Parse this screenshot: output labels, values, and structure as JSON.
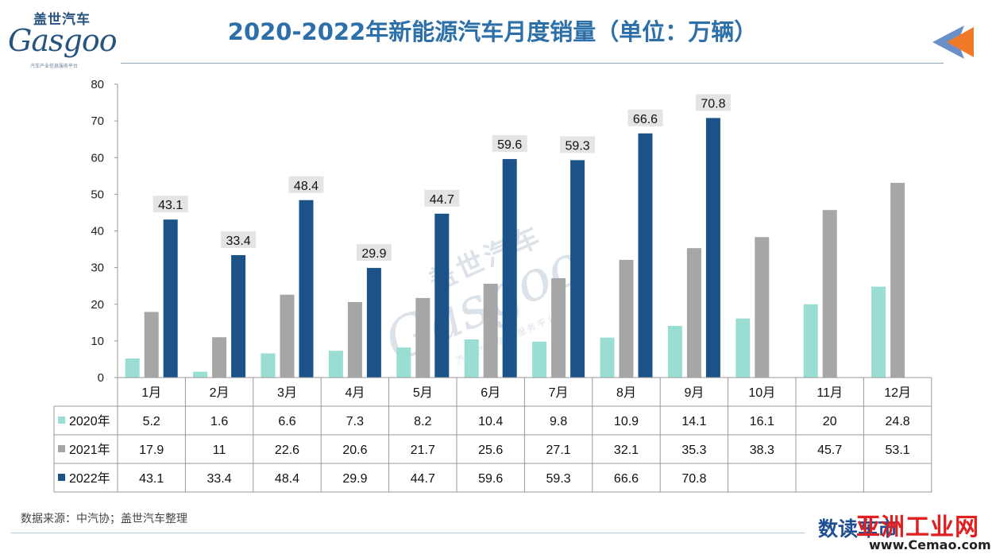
{
  "logo": {
    "cn": "盖世汽车",
    "en": "Gasgoo",
    "tagline": "汽车产业信息服务平台"
  },
  "header": {
    "title": "2020-2022年新能源汽车月度销量（单位：万辆）"
  },
  "watermark": {
    "cn": "盖世汽车",
    "en": "Gasgoo",
    "tagline": "汽车产业信息服务平台"
  },
  "source": "数据来源：中汽协；盖世汽车整理",
  "brand": {
    "left": "数读车市",
    "main": "亚洲工业网",
    "url": "www.Cemao.com"
  },
  "colors": {
    "s2020": "#99ddd3",
    "s2021": "#a6a6a6",
    "s2022": "#1b5287",
    "title": "#2d6fa8"
  },
  "chart_data": {
    "type": "bar",
    "title": "2020-2022年新能源汽车月度销量（单位：万辆）",
    "categories": [
      "1月",
      "2月",
      "3月",
      "4月",
      "5月",
      "6月",
      "7月",
      "8月",
      "9月",
      "10月",
      "11月",
      "12月"
    ],
    "series": [
      {
        "name": "2020年",
        "values": [
          5.2,
          1.6,
          6.6,
          7.3,
          8.2,
          10.4,
          9.8,
          10.9,
          14.1,
          16.1,
          20,
          24.8
        ]
      },
      {
        "name": "2021年",
        "values": [
          17.9,
          11,
          22.6,
          20.6,
          21.7,
          25.6,
          27.1,
          32.1,
          35.3,
          38.3,
          45.7,
          53.1
        ]
      },
      {
        "name": "2022年",
        "values": [
          43.1,
          33.4,
          48.4,
          29.9,
          44.7,
          59.6,
          59.3,
          66.6,
          70.8,
          null,
          null,
          null
        ]
      }
    ],
    "labeled_series": "2022年",
    "yticks": [
      "0",
      "10",
      "20",
      "30",
      "40",
      "50",
      "60",
      "70",
      "80"
    ],
    "ylim": [
      0,
      80
    ],
    "legend": "data-table",
    "grid": false
  }
}
